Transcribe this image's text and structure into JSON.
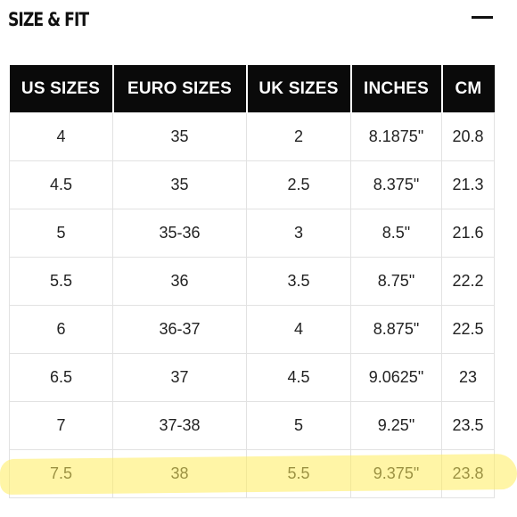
{
  "header": {
    "title": "SIZE & FIT",
    "collapse_icon": "minus-icon"
  },
  "table": {
    "columns": [
      "US SIZES",
      "EURO SIZES",
      "UK SIZES",
      "INCHES",
      "CM"
    ],
    "rows": [
      [
        "4",
        "35",
        "2",
        "8.1875\"",
        "20.8"
      ],
      [
        "4.5",
        "35",
        "2.5",
        "8.375\"",
        "21.3"
      ],
      [
        "5",
        "35-36",
        "3",
        "8.5\"",
        "21.6"
      ],
      [
        "5.5",
        "36",
        "3.5",
        "8.75\"",
        "22.2"
      ],
      [
        "6",
        "36-37",
        "4",
        "8.875\"",
        "22.5"
      ],
      [
        "6.5",
        "37",
        "4.5",
        "9.0625\"",
        "23"
      ],
      [
        "7",
        "37-38",
        "5",
        "9.25\"",
        "23.5"
      ],
      [
        "7.5",
        "38",
        "5.5",
        "9.375\"",
        "23.8"
      ]
    ],
    "highlighted_row_index": 7,
    "highlight_color": "#ffec5c"
  }
}
